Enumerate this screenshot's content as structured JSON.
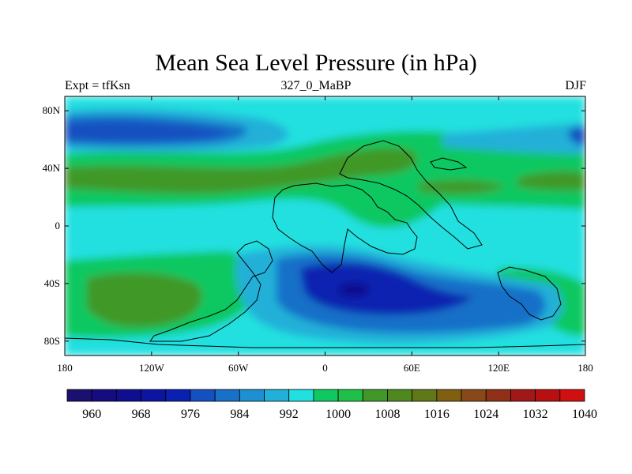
{
  "chart_data": {
    "type": "heatmap",
    "title": "Mean Sea Level Pressure (in hPa)",
    "left_string": "Expt = tfKsn",
    "center_string": "327_0_MaBP",
    "right_string": "DJF",
    "x_range": [
      -180,
      180
    ],
    "y_range": [
      -90,
      90
    ],
    "x_ticks": [
      {
        "value": -180,
        "label": "180"
      },
      {
        "value": -120,
        "label": "120W"
      },
      {
        "value": -60,
        "label": "60W"
      },
      {
        "value": 0,
        "label": "0"
      },
      {
        "value": 60,
        "label": "60E"
      },
      {
        "value": 120,
        "label": "120E"
      },
      {
        "value": 180,
        "label": "180"
      }
    ],
    "y_ticks": [
      {
        "value": 80,
        "label": "80N"
      },
      {
        "value": 40,
        "label": "40N"
      },
      {
        "value": 0,
        "label": "0"
      },
      {
        "value": -40,
        "label": "40S"
      },
      {
        "value": -80,
        "label": "80S"
      }
    ],
    "colorbar": {
      "levels": [
        960,
        964,
        968,
        972,
        976,
        980,
        984,
        988,
        992,
        996,
        1000,
        1004,
        1008,
        1012,
        1016,
        1020,
        1024,
        1028,
        1032,
        1036,
        1040
      ],
      "labels": [
        "960",
        "968",
        "976",
        "984",
        "992",
        "1000",
        "1008",
        "1016",
        "1024",
        "1032",
        "1040"
      ],
      "colors": [
        "#1a1070",
        "#140c80",
        "#100e90",
        "#0c14a0",
        "#0a20b0",
        "#1450c0",
        "#1870c8",
        "#1c90d0",
        "#20b0d8",
        "#20e0e0",
        "#10c860",
        "#20c048",
        "#409828",
        "#508820",
        "#607818",
        "#806010",
        "#884818",
        "#903018",
        "#a01818",
        "#b81010",
        "#d01010"
      ]
    },
    "regions": [
      {
        "name": "low-southern-ocean-core",
        "value": 964,
        "color": "#100e90",
        "lon": 10,
        "lat": -47,
        "extent": [
          8,
          3.5
        ]
      },
      {
        "name": "low-southern-ocean-ring",
        "value": 976,
        "color": "#0a20b0",
        "lon": 15,
        "lat": -45,
        "extent": [
          24,
          12
        ]
      },
      {
        "name": "low-north-pacific",
        "value": 984,
        "color": "#1450c0",
        "lon": -140,
        "lat": 62,
        "extent": [
          36,
          7
        ]
      },
      {
        "name": "high-north-pacific-belt",
        "value": 1020,
        "color": "#606018",
        "lon": -100,
        "lat": 30,
        "extent": [
          30,
          5
        ]
      },
      {
        "name": "high-south-pacific",
        "value": 1016,
        "color": "#508820",
        "lon": -140,
        "lat": -55,
        "extent": [
          20,
          12
        ]
      }
    ]
  }
}
